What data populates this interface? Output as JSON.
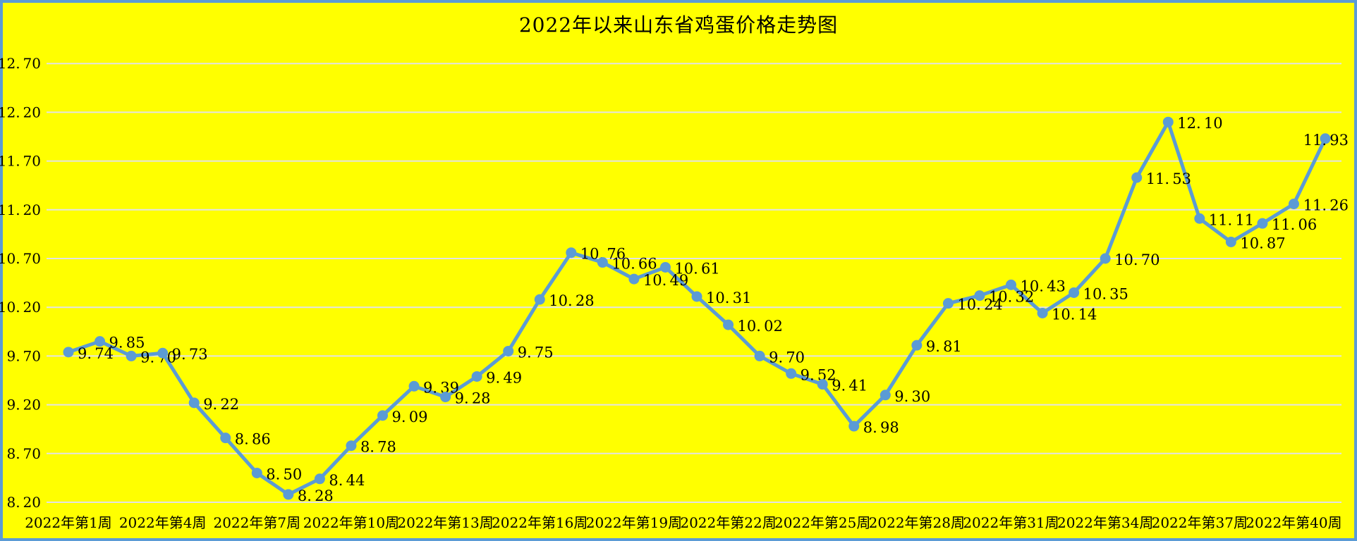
{
  "title": "2022年以来山东省鸡蛋价格走势图",
  "colors": {
    "background": "#FFFF00",
    "border": "#5B9BD5",
    "line": "#5B9BD5",
    "marker": "#5B9BD5",
    "gridline": "#E3E3E3",
    "text": "#000000"
  },
  "chart_data": {
    "type": "line",
    "title": "2022年以来山东省鸡蛋价格走势图",
    "xlabel": "",
    "ylabel": "",
    "x": [
      1,
      2,
      3,
      4,
      5,
      6,
      7,
      8,
      9,
      10,
      11,
      12,
      13,
      14,
      15,
      16,
      17,
      18,
      19,
      20,
      21,
      22,
      23,
      24,
      25,
      26,
      27,
      28,
      29,
      30,
      31,
      32,
      33,
      34,
      35,
      36,
      37,
      38,
      39,
      40,
      41
    ],
    "values": [
      9.74,
      9.85,
      9.7,
      9.73,
      9.22,
      8.86,
      8.5,
      8.28,
      8.44,
      8.78,
      9.09,
      9.39,
      9.28,
      9.49,
      9.75,
      10.28,
      10.76,
      10.66,
      10.49,
      10.61,
      10.31,
      10.02,
      9.7,
      9.52,
      9.41,
      8.98,
      9.3,
      9.81,
      10.24,
      10.32,
      10.43,
      10.14,
      10.35,
      10.7,
      11.53,
      12.1,
      11.11,
      10.87,
      11.06,
      11.26,
      11.93
    ],
    "x_tick_labels": [
      "2022年第1周",
      "2022年第4周",
      "2022年第7周",
      "2022年第10周",
      "2022年第13周",
      "2022年第16周",
      "2022年第19周",
      "2022年第22周",
      "2022年第25周",
      "2022年第28周",
      "2022年第31周",
      "2022年第34周",
      "2022年第37周",
      "2022年第40周"
    ],
    "x_tick_every": 3,
    "yticks": [
      8.2,
      8.7,
      9.2,
      9.7,
      10.2,
      10.7,
      11.2,
      11.7,
      12.2,
      12.7
    ],
    "ylim": [
      8.2,
      12.7
    ],
    "grid": true,
    "legend": false,
    "data_labels": true,
    "marker": "circle"
  }
}
